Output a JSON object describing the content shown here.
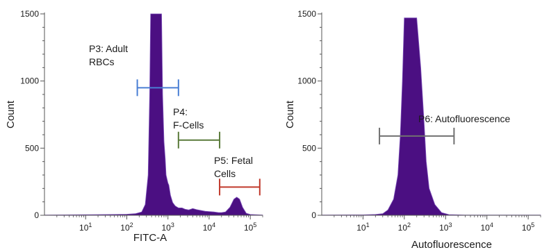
{
  "chart_data": [
    {
      "type": "area",
      "xscale": "log",
      "xlim": [
        1,
        200000
      ],
      "ylim": [
        0,
        1500
      ],
      "xlabel": "FITC-A",
      "ylabel": "Count",
      "grid": false,
      "fill_color": "#4b0f82",
      "yticks": [
        0,
        500,
        1000,
        1500
      ],
      "xticks": [
        {
          "value": 10,
          "base": "10",
          "exp": "1"
        },
        {
          "value": 100,
          "base": "10",
          "exp": "2"
        },
        {
          "value": 1000,
          "base": "10",
          "exp": "3"
        },
        {
          "value": 10000,
          "base": "10",
          "exp": "4"
        },
        {
          "value": 100000,
          "base": "10",
          "exp": "5"
        }
      ],
      "x": [
        1,
        10,
        50,
        100,
        160,
        230,
        280,
        330,
        360,
        380,
        700,
        740,
        800,
        860,
        900,
        1000,
        1050,
        1150,
        1300,
        1500,
        1800,
        2200,
        2600,
        3200,
        4000,
        5000,
        6500,
        8000,
        10000,
        13000,
        17000,
        20000,
        25000,
        32000,
        40000,
        47000,
        55000,
        65000,
        80000,
        100000,
        200000
      ],
      "y": [
        2,
        4,
        6,
        8,
        12,
        25,
        80,
        300,
        900,
        1500,
        1500,
        900,
        550,
        420,
        300,
        240,
        225,
        150,
        95,
        70,
        55,
        55,
        45,
        40,
        50,
        42,
        35,
        30,
        28,
        25,
        20,
        20,
        25,
        60,
        120,
        135,
        120,
        60,
        15,
        6,
        2
      ],
      "gates": [
        {
          "label": [
            "P3: Adult",
            "RBCs"
          ],
          "x_start": 180,
          "x_end": 1800,
          "y": 950,
          "color": "#4a7fd4"
        },
        {
          "label": [
            "P4:",
            "F-Cells"
          ],
          "x_start": 1800,
          "x_end": 18000,
          "y": 560,
          "color": "#5a7a3a"
        },
        {
          "label": [
            "P5: Fetal",
            "Cells"
          ],
          "x_start": 18000,
          "x_end": 170000,
          "y": 210,
          "color": "#c0392b"
        }
      ]
    },
    {
      "type": "area",
      "xscale": "log",
      "xlim": [
        1,
        200000
      ],
      "ylim": [
        0,
        1500
      ],
      "xlabel": "Autofluorescence",
      "ylabel": "Count",
      "grid": false,
      "fill_color": "#4b0f82",
      "yticks": [
        0,
        500,
        1000,
        1500
      ],
      "xticks": [
        {
          "value": 10,
          "base": "10",
          "exp": "1"
        },
        {
          "value": 100,
          "base": "10",
          "exp": "2"
        },
        {
          "value": 1000,
          "base": "10",
          "exp": "3"
        },
        {
          "value": 10000,
          "base": "10",
          "exp": "4"
        },
        {
          "value": 100000,
          "base": "10",
          "exp": "5"
        }
      ],
      "x": [
        1,
        10,
        20,
        30,
        40,
        55,
        70,
        80,
        90,
        100,
        200,
        250,
        300,
        340,
        400,
        550,
        800,
        1200,
        3000,
        200000
      ],
      "y": [
        2,
        3,
        6,
        12,
        40,
        120,
        300,
        600,
        1000,
        1470,
        1470,
        1100,
        700,
        400,
        200,
        80,
        20,
        5,
        2,
        2
      ],
      "gates": [
        {
          "label": [
            "P6: Autofluorescence"
          ],
          "x_start": 25,
          "x_end": 1600,
          "y": 590,
          "color": "#707070"
        }
      ]
    }
  ]
}
